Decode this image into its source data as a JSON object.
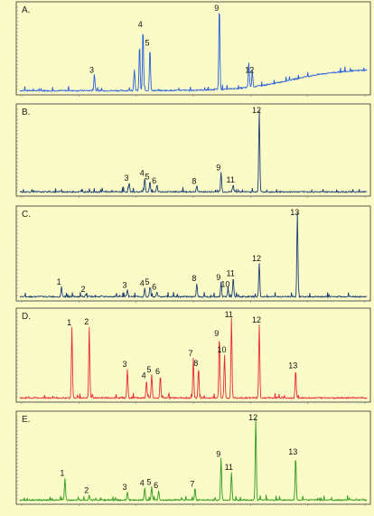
{
  "chart_data": [
    {
      "type": "line",
      "panel_label": "A.",
      "color": "#2a5fdc",
      "baseline_drift": true,
      "peaks": [
        {
          "label": "3",
          "x": 0.215,
          "value": 0.19
        },
        {
          "label": "",
          "x": 0.33,
          "value": 0.25
        },
        {
          "label": "",
          "x": 0.345,
          "value": 0.55
        },
        {
          "label": "4",
          "x": 0.355,
          "value": 0.75
        },
        {
          "label": "5",
          "x": 0.375,
          "value": 0.52
        },
        {
          "label": "9",
          "x": 0.575,
          "value": 1.0
        },
        {
          "label": "",
          "x": 0.66,
          "value": 0.3
        },
        {
          "label": "12",
          "x": 0.67,
          "value": 0.19
        }
      ]
    },
    {
      "type": "line",
      "panel_label": "B.",
      "color": "#1b3e74",
      "baseline_drift": false,
      "peaks": [
        {
          "label": "3",
          "x": 0.315,
          "value": 0.11
        },
        {
          "label": "4",
          "x": 0.36,
          "value": 0.17
        },
        {
          "label": "5",
          "x": 0.375,
          "value": 0.13
        },
        {
          "label": "6",
          "x": 0.395,
          "value": 0.08
        },
        {
          "label": "8",
          "x": 0.51,
          "value": 0.07
        },
        {
          "label": "9",
          "x": 0.58,
          "value": 0.24
        },
        {
          "label": "11",
          "x": 0.615,
          "value": 0.09
        },
        {
          "label": "12",
          "x": 0.69,
          "value": 1.0
        }
      ]
    },
    {
      "type": "line",
      "panel_label": "C.",
      "color": "#1b3e74",
      "baseline_drift": false,
      "peaks": [
        {
          "label": "1",
          "x": 0.12,
          "value": 0.12
        },
        {
          "label": "2",
          "x": 0.19,
          "value": 0.03
        },
        {
          "label": "3",
          "x": 0.31,
          "value": 0.08
        },
        {
          "label": "4",
          "x": 0.36,
          "value": 0.1
        },
        {
          "label": "5",
          "x": 0.375,
          "value": 0.12
        },
        {
          "label": "6",
          "x": 0.395,
          "value": 0.06
        },
        {
          "label": "8",
          "x": 0.51,
          "value": 0.16
        },
        {
          "label": "9",
          "x": 0.58,
          "value": 0.17
        },
        {
          "label": "10",
          "x": 0.6,
          "value": 0.09
        },
        {
          "label": "11",
          "x": 0.615,
          "value": 0.22
        },
        {
          "label": "12",
          "x": 0.69,
          "value": 0.4
        },
        {
          "label": "13",
          "x": 0.8,
          "value": 1.0
        }
      ]
    },
    {
      "type": "line",
      "panel_label": "D.",
      "color": "#e8283a",
      "baseline_drift": false,
      "peaks": [
        {
          "label": "1",
          "x": 0.15,
          "value": 0.85
        },
        {
          "label": "2",
          "x": 0.2,
          "value": 0.86
        },
        {
          "label": "3",
          "x": 0.31,
          "value": 0.35
        },
        {
          "label": "4",
          "x": 0.365,
          "value": 0.21
        },
        {
          "label": "5",
          "x": 0.38,
          "value": 0.28
        },
        {
          "label": "6",
          "x": 0.405,
          "value": 0.26
        },
        {
          "label": "7",
          "x": 0.5,
          "value": 0.48
        },
        {
          "label": "8",
          "x": 0.515,
          "value": 0.36
        },
        {
          "label": "9",
          "x": 0.575,
          "value": 0.72
        },
        {
          "label": "10",
          "x": 0.59,
          "value": 0.52
        },
        {
          "label": "11",
          "x": 0.61,
          "value": 0.96
        },
        {
          "label": "12",
          "x": 0.69,
          "value": 0.88
        },
        {
          "label": "13",
          "x": 0.795,
          "value": 0.33
        }
      ]
    },
    {
      "type": "line",
      "panel_label": "E.",
      "color": "#2f9a1e",
      "baseline_drift": false,
      "peaks": [
        {
          "label": "1",
          "x": 0.13,
          "value": 0.27
        },
        {
          "label": "2",
          "x": 0.2,
          "value": 0.06
        },
        {
          "label": "3",
          "x": 0.31,
          "value": 0.1
        },
        {
          "label": "4",
          "x": 0.36,
          "value": 0.15
        },
        {
          "label": "5",
          "x": 0.38,
          "value": 0.16
        },
        {
          "label": "6",
          "x": 0.4,
          "value": 0.12
        },
        {
          "label": "7",
          "x": 0.505,
          "value": 0.14
        },
        {
          "label": "9",
          "x": 0.58,
          "value": 0.5
        },
        {
          "label": "11",
          "x": 0.61,
          "value": 0.34
        },
        {
          "label": "12",
          "x": 0.68,
          "value": 1.0
        },
        {
          "label": "13",
          "x": 0.795,
          "value": 0.53
        }
      ]
    }
  ]
}
